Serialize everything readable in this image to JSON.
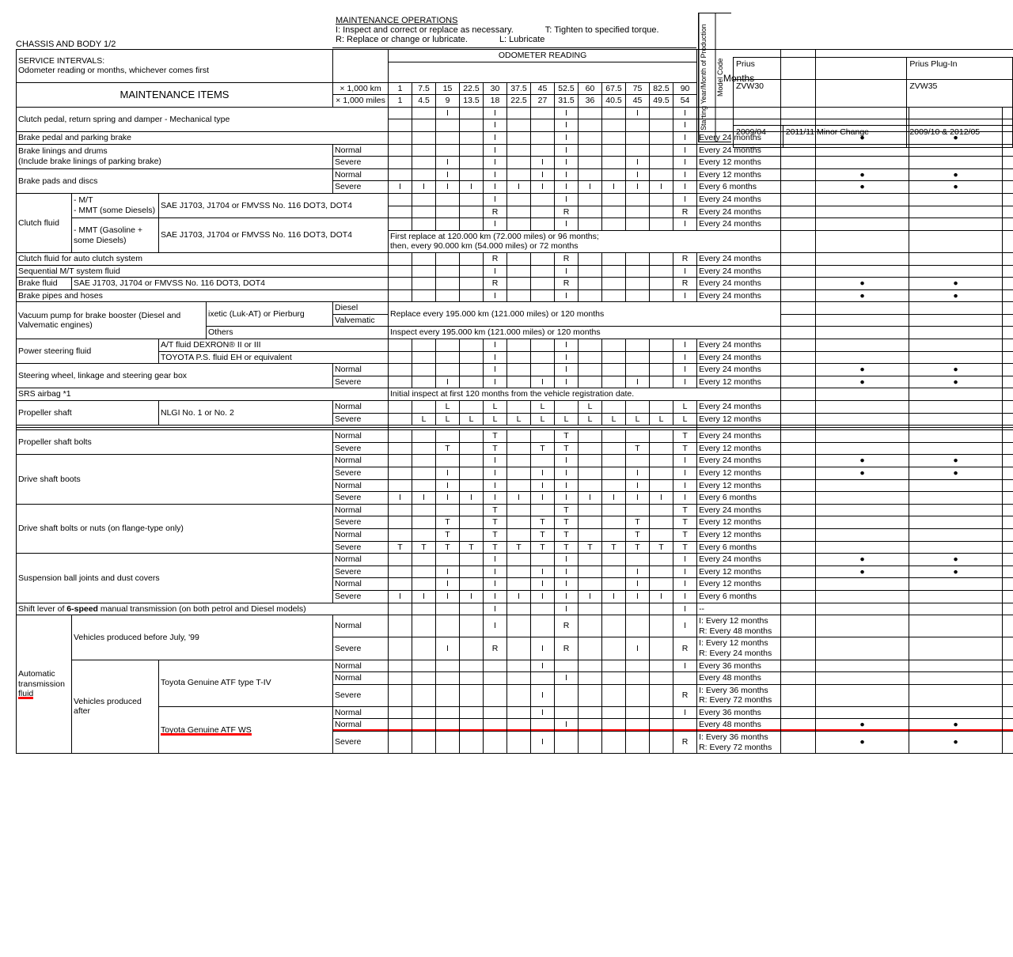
{
  "header": {
    "title": "CHASSIS AND BODY 1/2",
    "service_intervals": "SERVICE INTERVALS:",
    "service_note": "Odometer reading or months, whichever comes first",
    "ops_title": "MAINTENANCE OPERATIONS",
    "ops_I": "I: Inspect and correct or replace as necessary.",
    "ops_T": "T: Tighten to specified torque.",
    "ops_R": "R: Replace or change or lubricate.",
    "ops_L": "L: Lubricate",
    "odometer_reading": "ODOMETER READING",
    "months": "Months",
    "maintenance_items": "MAINTENANCE ITEMS",
    "x1000km": "× 1,000 km",
    "x1000mi": "× 1,000 miles",
    "side_production": "Starting Year/Month of Production",
    "side_modelcode": "Model Code"
  },
  "models": {
    "m1": "Prius",
    "m2": "Prius Plug-In",
    "c1": "ZVW30",
    "c2": "ZVW35",
    "d1": "2009/04",
    "d2": "2011/11 Minor Change",
    "d3": "2009/10 & 2012/05"
  },
  "km": [
    "1",
    "7.5",
    "15",
    "22.5",
    "30",
    "37.5",
    "45",
    "52.5",
    "60",
    "67.5",
    "75",
    "82.5",
    "90"
  ],
  "mi": [
    "1",
    "4.5",
    "9",
    "13.5",
    "18",
    "22.5",
    "27",
    "31.5",
    "36",
    "40.5",
    "45",
    "49.5",
    "54"
  ],
  "labels": {
    "normal": "Normal",
    "severe": "Severe",
    "diesel": "Diesel",
    "valvematic": "Valvematic",
    "others": "Others",
    "every24": "Every 24 months",
    "every12": "Every 12 months",
    "every6": "Every 6 months",
    "every36": "Every 36 months",
    "every48": "Every 48 months",
    "i12r48": "I: Every 12 months\nR: Every 48 months",
    "i12r24": "I: Every 12 months\nR: Every 24 months",
    "i36r72": "I: Every 36 months\nR: Every 72 months",
    "dash": "--"
  },
  "rows": {
    "clutch_pedal": "Clutch pedal, return spring and damper - Mechanical type",
    "brake_pedal": "Brake pedal and parking brake",
    "brake_linings": "Brake linings and drums\n(Include brake linings of parking brake)",
    "brake_pads": "Brake pads and discs",
    "clutch_fluid": "Clutch fluid",
    "cf_a": "- M/T\n- MMT (some Diesels)",
    "cf_b": "- MMT (Gasoline + some Diesels)",
    "cf_std": "SAE J1703, J1704 or FMVSS No. 116 DOT3, DOT4",
    "cf_note": "First replace at 120.000 km (72.000 miles) or 96 months;\nthen, every 90.000 km (54.000 miles) or 72 months",
    "clutch_auto": "Clutch fluid for auto clutch system",
    "seq_mt": "Sequential M/T system fluid",
    "brake_fluid": "Brake fluid",
    "brake_pipes": "Brake pipes and hoses",
    "vac_pump": "Vacuum pump for brake booster (Diesel and Valvematic engines)",
    "vac_a": "ixetic (Luk-AT) or Pierburg",
    "vac_note1": "Replace every 195.000 km (121.000 miles) or 120 months",
    "vac_note2": "Inspect every 195.000 km (121.000 miles) or 120 months",
    "ps_fluid": "Power steering fluid",
    "ps_a": "A/T fluid DEXRON® II or III",
    "ps_b": "TOYOTA P.S. fluid EH or equivalent",
    "steering": "Steering wheel, linkage and steering gear box",
    "srs": "SRS airbag  *1",
    "srs_note": "Initial inspect at first 120 months from the vehicle registration date.",
    "prop_shaft": "Propeller shaft",
    "nlgi": "NLGI No. 1 or No. 2",
    "prop_bolts": "Propeller shaft bolts",
    "ds_boots": "Drive shaft boots",
    "ds_bolts": "Drive shaft bolts or nuts (on flange-type only)",
    "susp": "Suspension ball joints and dust covers",
    "shift_lever": "Shift lever of 6-speed manual transmission (on both petrol and Diesel models)",
    "atf": "Automatic transmission fluid",
    "atf_before99": "Vehicles produced before July, '99",
    "atf_after": "Vehicles produced after",
    "atf_tiv": "Toyota Genuine ATF type T-IV",
    "atf_ws": "Toyota Genuine ATF WS"
  },
  "sym": {
    "I": "I",
    "R": "R",
    "L": "L",
    "T": "T"
  },
  "colors": {
    "red": "#ff0000",
    "dot": "#000000",
    "border": "#000000"
  }
}
